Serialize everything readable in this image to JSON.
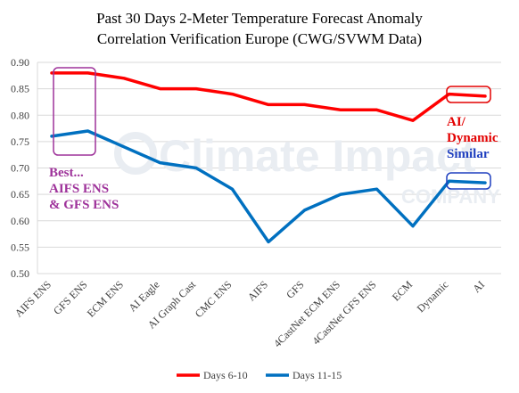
{
  "chart_data": {
    "type": "line",
    "title_lines": [
      "Past 30 Days 2-Meter Temperature Forecast Anomaly",
      "Correlation Verification Europe (CWG/SVWM Data)"
    ],
    "categories": [
      "AIFS ENS",
      "GFS ENS",
      "ECM ENS",
      "AI Eagle",
      "AI Graph Cast",
      "CMC ENS",
      "AIFS",
      "GFS",
      "4CastNet ECM ENS",
      "4CastNet GFS ENS",
      "ECM",
      "Dynamic",
      "AI"
    ],
    "y_ticks": [
      "0.90",
      "0.85",
      "0.80",
      "0.75",
      "0.70",
      "0.65",
      "0.60",
      "0.55",
      "0.50"
    ],
    "ylim": [
      0.5,
      0.9
    ],
    "grid": true,
    "legend_position": "bottom",
    "series": [
      {
        "name": "Days 6-10",
        "color": "#ff0000",
        "values": [
          0.88,
          0.88,
          0.87,
          0.85,
          0.85,
          0.84,
          0.82,
          0.82,
          0.81,
          0.81,
          0.79,
          0.84,
          0.836
        ]
      },
      {
        "name": "Days 11-15",
        "color": "#0070c0",
        "values": [
          0.76,
          0.77,
          0.74,
          0.71,
          0.7,
          0.66,
          0.56,
          0.62,
          0.65,
          0.66,
          0.59,
          0.675,
          0.672
        ]
      }
    ],
    "annotations": {
      "best_lines": [
        "Best...",
        "AIFS ENS",
        "& GFS ENS"
      ],
      "best_color": "#9e329a",
      "ai_dynamic_lines": [
        "AI/",
        "Dynamic"
      ],
      "ai_dynamic_color": "#e30000",
      "similar_label": "Similar",
      "similar_color": "#1f3fbf",
      "watermark_main": "Climate Impact",
      "watermark_sub": "COMPANY"
    }
  }
}
